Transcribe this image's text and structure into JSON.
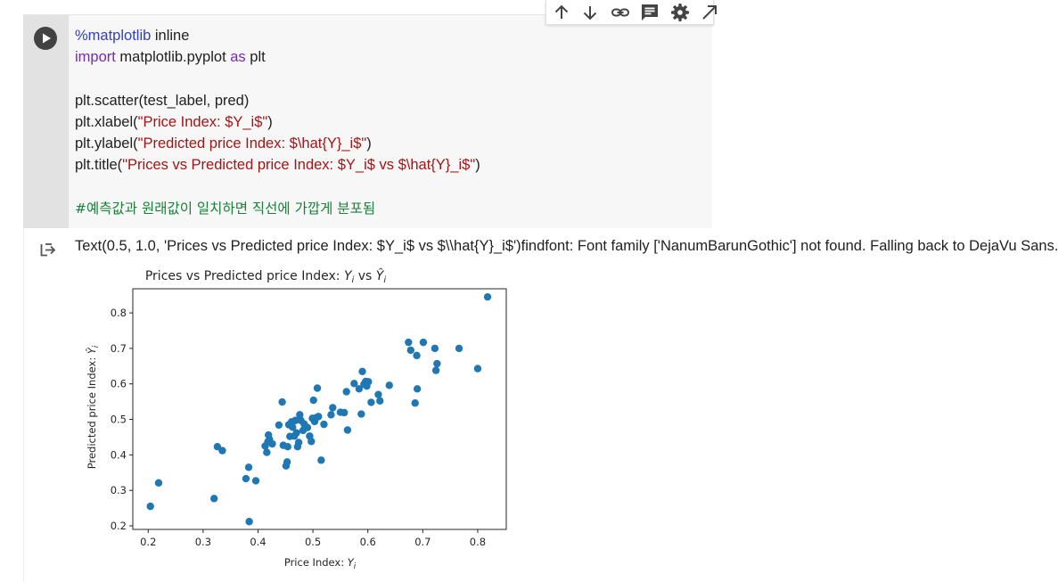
{
  "toolbar": {
    "icons": [
      "arrow-up-icon",
      "arrow-down-icon",
      "link-icon",
      "comment-icon",
      "gear-icon",
      "expand-icon"
    ]
  },
  "cell": {
    "code_lines": [
      [
        {
          "t": "%matplotlib",
          "c": "magic"
        },
        {
          "t": " inline"
        }
      ],
      [
        {
          "t": "import",
          "c": "kw"
        },
        {
          "t": " matplotlib.pyplot "
        },
        {
          "t": "as",
          "c": "kw"
        },
        {
          "t": " plt"
        }
      ],
      [],
      [
        {
          "t": "plt.scatter(test_label, pred)"
        }
      ],
      [
        {
          "t": "plt.xlabel("
        },
        {
          "t": "\"Price Index: $Y_i$\"",
          "c": "str"
        },
        {
          "t": ")"
        }
      ],
      [
        {
          "t": "plt.ylabel("
        },
        {
          "t": "\"Predicted price Index: $\\hat{Y}_i$\"",
          "c": "str"
        },
        {
          "t": ")"
        }
      ],
      [
        {
          "t": "plt.title("
        },
        {
          "t": "\"Prices vs Predicted price Index: $Y_i$ vs $\\hat{Y}_i$\"",
          "c": "str"
        },
        {
          "t": ")"
        }
      ],
      [],
      [
        {
          "t": "#예측값과 원래값이 일치하면 직선에 가깝게 분포됨",
          "c": "cmt"
        }
      ]
    ]
  },
  "output": {
    "text": "Text(0.5, 1.0, 'Prices vs Predicted price Index: $Y_i$ vs $\\\\hat{Y}_i$')findfont: Font family ['NanumBarunGothic'] not found. Falling back to DejaVu Sans."
  },
  "chart_data": {
    "type": "scatter",
    "title_prefix": "Prices vs Predicted price Index: ",
    "title_y": "Y",
    "title_sub": "i",
    "title_vs": " vs ",
    "title_yhat": "Ŷ",
    "xlabel_prefix": "Price Index: ",
    "xlabel_y": "Y",
    "xlabel_sub": "i",
    "ylabel_prefix": "Predicted price Index: ",
    "ylabel_yhat": "Ŷ",
    "ylabel_sub": "i",
    "xlim": [
      0.172,
      0.852
    ],
    "ylim": [
      0.19,
      0.868
    ],
    "xticks": [
      "0.2",
      "0.3",
      "0.4",
      "0.5",
      "0.6",
      "0.7",
      "0.8"
    ],
    "yticks": [
      "0.2",
      "0.3",
      "0.4",
      "0.5",
      "0.6",
      "0.7",
      "0.8"
    ],
    "grid": false,
    "color": "#1f77b4",
    "points": [
      [
        0.204,
        0.255
      ],
      [
        0.219,
        0.321
      ],
      [
        0.32,
        0.277
      ],
      [
        0.326,
        0.423
      ],
      [
        0.335,
        0.412
      ],
      [
        0.378,
        0.333
      ],
      [
        0.383,
        0.365
      ],
      [
        0.384,
        0.212
      ],
      [
        0.396,
        0.327
      ],
      [
        0.413,
        0.425
      ],
      [
        0.416,
        0.407
      ],
      [
        0.418,
        0.437
      ],
      [
        0.419,
        0.456
      ],
      [
        0.421,
        0.443
      ],
      [
        0.426,
        0.431
      ],
      [
        0.438,
        0.484
      ],
      [
        0.444,
        0.549
      ],
      [
        0.446,
        0.427
      ],
      [
        0.451,
        0.369
      ],
      [
        0.453,
        0.38
      ],
      [
        0.454,
        0.423
      ],
      [
        0.456,
        0.485
      ],
      [
        0.458,
        0.452
      ],
      [
        0.461,
        0.493
      ],
      [
        0.463,
        0.478
      ],
      [
        0.466,
        0.453
      ],
      [
        0.468,
        0.497
      ],
      [
        0.47,
        0.462
      ],
      [
        0.472,
        0.423
      ],
      [
        0.474,
        0.435
      ],
      [
        0.476,
        0.513
      ],
      [
        0.478,
        0.497
      ],
      [
        0.482,
        0.469
      ],
      [
        0.484,
        0.487
      ],
      [
        0.49,
        0.477
      ],
      [
        0.494,
        0.453
      ],
      [
        0.497,
        0.438
      ],
      [
        0.499,
        0.503
      ],
      [
        0.501,
        0.554
      ],
      [
        0.503,
        0.494
      ],
      [
        0.506,
        0.505
      ],
      [
        0.508,
        0.588
      ],
      [
        0.51,
        0.508
      ],
      [
        0.515,
        0.385
      ],
      [
        0.52,
        0.486
      ],
      [
        0.533,
        0.513
      ],
      [
        0.536,
        0.533
      ],
      [
        0.55,
        0.52
      ],
      [
        0.557,
        0.519
      ],
      [
        0.561,
        0.578
      ],
      [
        0.563,
        0.47
      ],
      [
        0.575,
        0.601
      ],
      [
        0.584,
        0.586
      ],
      [
        0.588,
        0.515
      ],
      [
        0.59,
        0.635
      ],
      [
        0.593,
        0.599
      ],
      [
        0.596,
        0.607
      ],
      [
        0.598,
        0.594
      ],
      [
        0.601,
        0.606
      ],
      [
        0.606,
        0.548
      ],
      [
        0.619,
        0.57
      ],
      [
        0.622,
        0.552
      ],
      [
        0.639,
        0.596
      ],
      [
        0.674,
        0.717
      ],
      [
        0.678,
        0.695
      ],
      [
        0.686,
        0.546
      ],
      [
        0.69,
        0.586
      ],
      [
        0.689,
        0.68
      ],
      [
        0.701,
        0.717
      ],
      [
        0.722,
        0.7
      ],
      [
        0.724,
        0.638
      ],
      [
        0.726,
        0.657
      ],
      [
        0.766,
        0.7
      ],
      [
        0.8,
        0.643
      ],
      [
        0.818,
        0.845
      ]
    ]
  }
}
